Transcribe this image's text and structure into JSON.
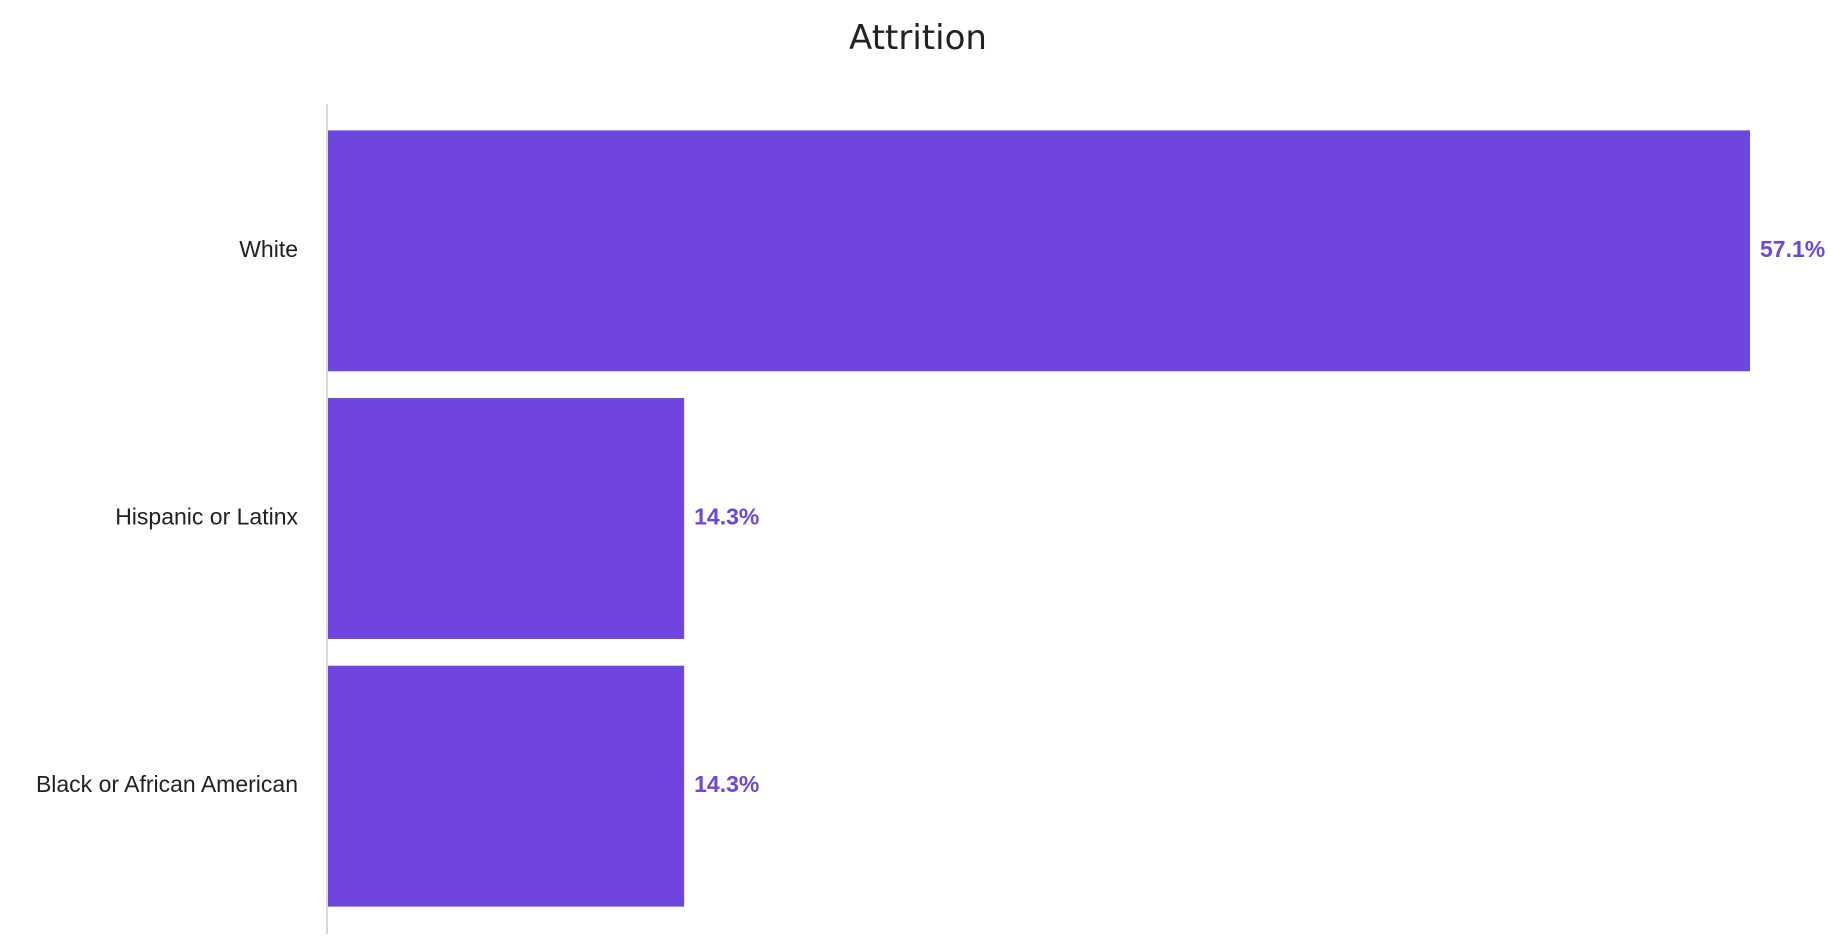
{
  "chart_data": {
    "type": "bar",
    "orientation": "horizontal",
    "title": "Attrition",
    "xlabel": "",
    "ylabel": "",
    "categories": [
      "White",
      "Hispanic or Latinx",
      "Black or African American"
    ],
    "values": [
      57.1,
      14.3,
      14.3
    ],
    "value_labels": [
      "57.1%",
      "14.3%",
      "14.3%"
    ],
    "xlim": [
      0,
      57.1
    ],
    "grid": false,
    "legend": "none",
    "colors": {
      "bar": "#6e45de",
      "value_label": "#6e45de",
      "axis_line": "#d5d8e4"
    }
  }
}
